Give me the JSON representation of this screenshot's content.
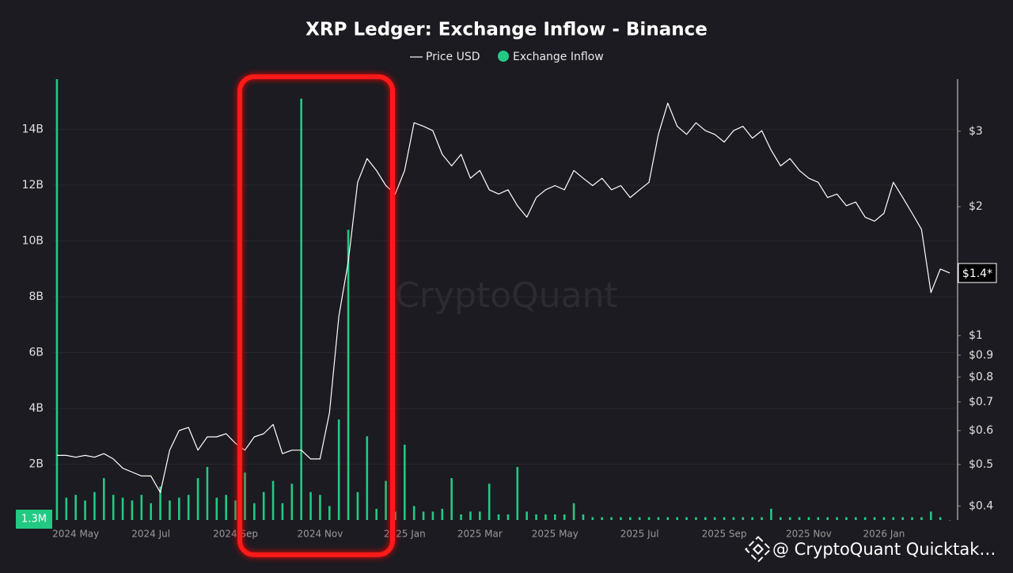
{
  "chart_data": {
    "type": "combo",
    "title": "XRP Ledger: Exchange Inflow - Binance",
    "watermark": "CryptoQuant",
    "footer_credit": "@ CryptoQuant Quicktak…",
    "categories": [
      null,
      null,
      "2024 May",
      null,
      null,
      null,
      null,
      null,
      null,
      null,
      "2024 Jul",
      null,
      null,
      null,
      null,
      null,
      null,
      null,
      null,
      "2024 Sep",
      null,
      null,
      null,
      null,
      null,
      null,
      null,
      null,
      "2024 Nov",
      null,
      null,
      null,
      null,
      null,
      null,
      null,
      null,
      "2025 Jan",
      null,
      null,
      null,
      null,
      null,
      null,
      null,
      "2025 Mar",
      null,
      null,
      null,
      null,
      null,
      null,
      null,
      "2025 May",
      null,
      null,
      null,
      null,
      null,
      null,
      null,
      null,
      "2025 Jul",
      null,
      null,
      null,
      null,
      null,
      null,
      null,
      null,
      "2025 Sep",
      null,
      null,
      null,
      null,
      null,
      null,
      null,
      null,
      "2025 Nov",
      null,
      null,
      null,
      null,
      null,
      null,
      null,
      "2026 Jan",
      null,
      null,
      null,
      null,
      null,
      null,
      null
    ],
    "series": [
      {
        "name": "Price USD",
        "type": "line",
        "axis": "y2",
        "color": "#ffffff",
        "last_label": "$1.4*",
        "values": [
          0.525,
          0.525,
          0.52,
          0.525,
          0.52,
          0.53,
          0.515,
          0.49,
          0.48,
          0.47,
          0.47,
          0.43,
          0.54,
          0.6,
          0.61,
          0.54,
          0.58,
          0.58,
          0.59,
          0.56,
          0.54,
          0.58,
          0.59,
          0.62,
          0.53,
          0.54,
          0.54,
          0.515,
          0.515,
          0.66,
          1.11,
          1.49,
          2.28,
          2.59,
          2.43,
          2.24,
          2.14,
          2.43,
          3.14,
          3.08,
          3.01,
          2.65,
          2.49,
          2.65,
          2.33,
          2.43,
          2.19,
          2.14,
          2.19,
          2.01,
          1.89,
          2.1,
          2.19,
          2.24,
          2.19,
          2.43,
          2.33,
          2.24,
          2.33,
          2.19,
          2.24,
          2.1,
          2.19,
          2.28,
          2.95,
          3.49,
          3.08,
          2.95,
          3.14,
          3.01,
          2.95,
          2.83,
          3.01,
          3.08,
          2.89,
          3.01,
          2.71,
          2.49,
          2.59,
          2.43,
          2.33,
          2.28,
          2.1,
          2.14,
          2.01,
          2.05,
          1.89,
          1.85,
          1.93,
          2.28,
          2.1,
          1.93,
          1.77,
          1.26,
          1.43,
          1.4
        ]
      },
      {
        "name": "Exchange Inflow",
        "type": "bar",
        "axis": "y",
        "color": "#22c983",
        "last_label": "1.3M",
        "values": [
          15.8,
          0.8,
          0.9,
          0.7,
          1.0,
          1.5,
          0.9,
          0.8,
          0.7,
          0.9,
          0.6,
          1.2,
          0.7,
          0.8,
          0.9,
          1.5,
          1.9,
          0.8,
          0.9,
          0.7,
          1.7,
          0.6,
          1.0,
          1.4,
          0.6,
          1.3,
          15.1,
          1.0,
          0.9,
          0.5,
          3.6,
          10.4,
          1.0,
          3.0,
          0.4,
          1.4,
          0.3,
          2.7,
          0.5,
          0.3,
          0.3,
          0.4,
          1.5,
          0.2,
          0.3,
          0.3,
          1.3,
          0.2,
          0.2,
          1.9,
          0.3,
          0.2,
          0.2,
          0.2,
          0.2,
          0.6,
          0.2,
          0.1,
          0.1,
          0.1,
          0.1,
          0.1,
          0.1,
          0.1,
          0.1,
          0.1,
          0.1,
          0.1,
          0.1,
          0.1,
          0.1,
          0.1,
          0.1,
          0.1,
          0.1,
          0.1,
          0.4,
          0.1,
          0.1,
          0.1,
          0.1,
          0.1,
          0.1,
          0.1,
          0.1,
          0.1,
          0.1,
          0.1,
          0.1,
          0.1,
          0.1,
          0.1,
          0.1,
          0.3,
          0.1,
          0.0013
        ]
      }
    ],
    "ylim": [
      0,
      15.8
    ],
    "yticks": [
      {
        "value": 2,
        "label": "2B"
      },
      {
        "value": 4,
        "label": "4B"
      },
      {
        "value": 6,
        "label": "6B"
      },
      {
        "value": 8,
        "label": "8B"
      },
      {
        "value": 10,
        "label": "10B"
      },
      {
        "value": 12,
        "label": "12B"
      },
      {
        "value": 14,
        "label": "14B"
      }
    ],
    "y2lim": [
      0.371,
      3.97
    ],
    "y2scale": "log",
    "y2ticks": [
      {
        "value": 0.4,
        "label": "$0.4"
      },
      {
        "value": 0.5,
        "label": "$0.5"
      },
      {
        "value": 0.6,
        "label": "$0.6"
      },
      {
        "value": 0.7,
        "label": "$0.7"
      },
      {
        "value": 0.8,
        "label": "$0.8"
      },
      {
        "value": 0.9,
        "label": "$0.9"
      },
      {
        "value": 1,
        "label": "$1"
      },
      {
        "value": 2,
        "label": "$2"
      },
      {
        "value": 3,
        "label": "$3"
      }
    ],
    "grid": true
  }
}
